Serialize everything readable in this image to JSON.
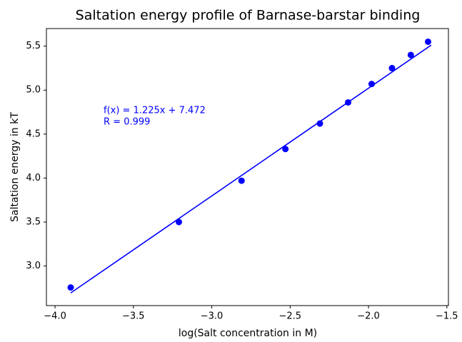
{
  "chart_data": {
    "type": "scatter",
    "title": "Saltation energy profile of Barnase-barstar binding",
    "xlabel": "log(Salt concentration in M)",
    "ylabel": "Saltation energy in kT",
    "annotation": [
      "f(x) = 1.225x + 7.472",
      "R = 0.999"
    ],
    "annotation_color": "#0000ff",
    "xlim": [
      -4.055,
      -1.49
    ],
    "ylim": [
      2.55,
      5.7
    ],
    "xticks": [
      {
        "value": -4.0,
        "label": "−4.0"
      },
      {
        "value": -3.5,
        "label": "−3.5"
      },
      {
        "value": -3.0,
        "label": "−3.0"
      },
      {
        "value": -2.5,
        "label": "−2.5"
      },
      {
        "value": -2.0,
        "label": "−2.0"
      },
      {
        "value": -1.5,
        "label": "−1.5"
      }
    ],
    "yticks": [
      {
        "value": 3.0,
        "label": "3.0"
      },
      3.5,
      {
        "value": 4.0,
        "label": "4.0"
      },
      4.5,
      {
        "value": 5.0,
        "label": "5.0"
      },
      5.5
    ],
    "grid": false,
    "series": [
      {
        "kind": "points",
        "color": "#0000ff",
        "x": [
          -3.9,
          -3.21,
          -2.81,
          -2.53,
          -2.31,
          -2.13,
          -1.98,
          -1.85,
          -1.73,
          -1.62
        ],
        "values": [
          2.756,
          3.5,
          3.97,
          4.33,
          4.62,
          4.86,
          5.07,
          5.25,
          5.4,
          5.55
        ]
      },
      {
        "kind": "line",
        "color": "#0000ff",
        "x": [
          -3.9,
          -1.6
        ],
        "values": [
          2.694,
          5.512
        ]
      }
    ]
  }
}
